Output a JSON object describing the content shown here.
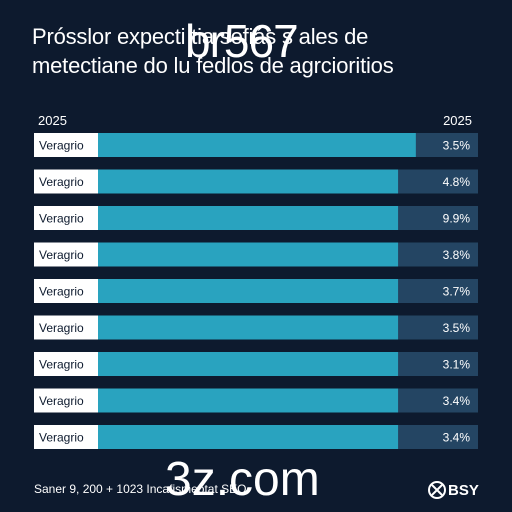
{
  "title_line1": "Prósslor expecti  tia  sofiás s ales de",
  "title_line2": "metectiane do lu fedlos de agrcioritios",
  "watermark_top": "br567",
  "watermark_bottom": "3z.com",
  "year_left": "2025",
  "year_right": "2025",
  "footer_note": "Saner 9, 200 + 1023 Incafismeotat SEO",
  "brand_text": "BSY",
  "colors": {
    "background": "#0d1a2e",
    "track": "#2a5373",
    "bar": "#29a3bf",
    "label_box": "#ffffff",
    "value_box": "#244563"
  },
  "chart_data": {
    "type": "bar",
    "orientation": "horizontal",
    "categories": [
      "Veragrio",
      "Veragrio",
      "Veragrio",
      "Veragrio",
      "Veragrio",
      "Veragrio",
      "Veragrio",
      "Veragrio",
      "Veragrio"
    ],
    "value_labels": [
      "3.5%",
      "4.8%",
      "9.9%",
      "3.8%",
      "3.7%",
      "3.5%",
      "3.1%",
      "3.4%",
      "3.4%"
    ],
    "values": [
      3.5,
      4.8,
      9.9,
      3.8,
      3.7,
      3.5,
      3.1,
      3.4,
      3.4
    ],
    "fill": [
      0.86,
      0.82,
      0.82,
      0.82,
      0.82,
      0.82,
      0.82,
      0.82,
      0.82
    ],
    "xlabel": "",
    "ylabel": "",
    "grid": false,
    "legend": "none"
  }
}
